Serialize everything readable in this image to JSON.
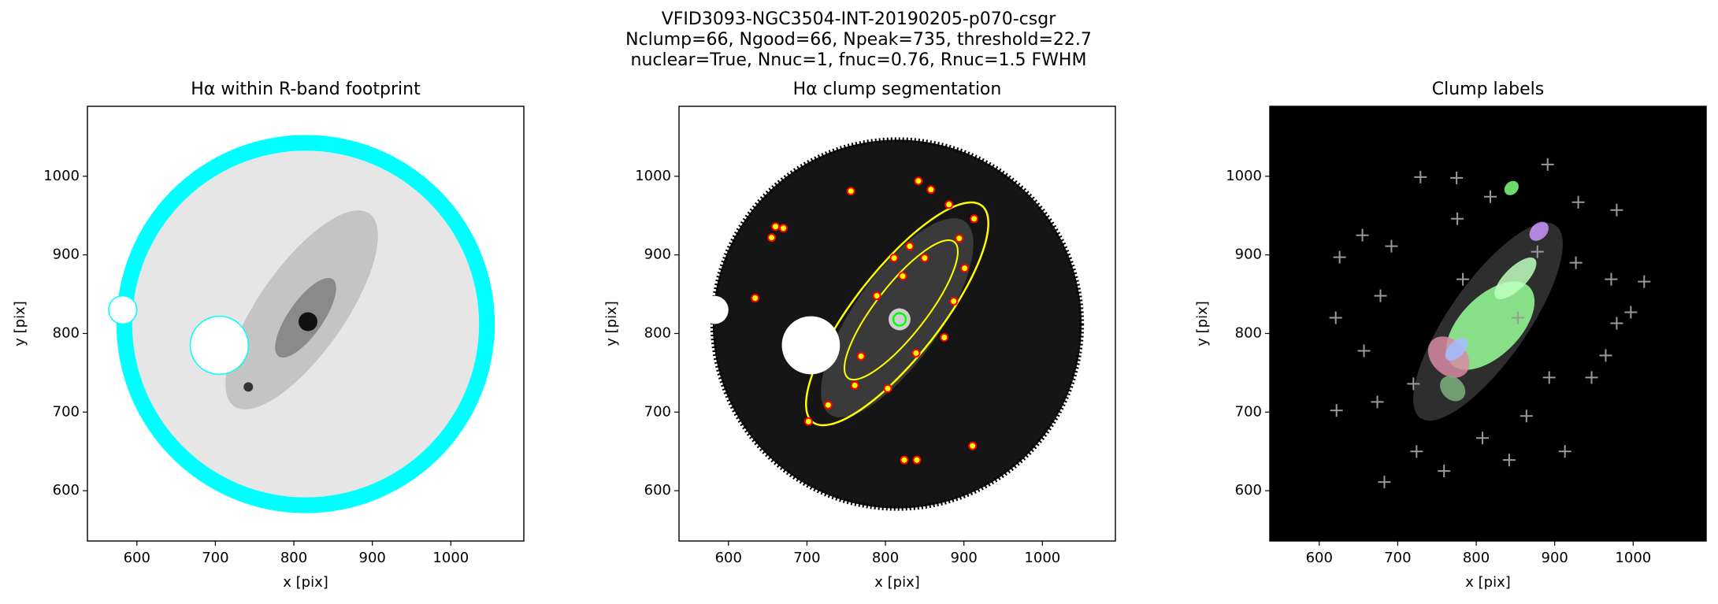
{
  "suptitle": [
    "VFID3093-NGC3504-INT-20190205-p070-csgr",
    "Nclump=66, Ngood=66, Npeak=735, threshold=22.7",
    "nuclear=True, Nnuc=1, fnuc=0.76, Rnuc=1.5 FWHM"
  ],
  "chart_data": [
    {
      "type": "image",
      "title": "Hα within R-band footprint",
      "xlabel": "x [pix]",
      "ylabel": "y [pix]",
      "background": "#ffffff",
      "xlim": [
        537,
        1093
      ],
      "ylim": [
        536,
        1089
      ],
      "xticks": [
        600,
        700,
        800,
        900,
        1000
      ],
      "yticks": [
        600,
        700,
        800,
        900,
        1000
      ]
    },
    {
      "type": "image",
      "title": "Hα clump segmentation",
      "xlabel": "x [pix]",
      "ylabel": "y [pix]",
      "background": "#ffffff",
      "xlim": [
        537,
        1093
      ],
      "ylim": [
        536,
        1089
      ],
      "xticks": [
        600,
        700,
        800,
        900,
        1000
      ],
      "yticks": [
        600,
        700,
        800,
        900,
        1000
      ],
      "clumps": {
        "color": "#ff0000",
        "x": [
          634,
          756,
          842,
          858,
          881,
          913,
          894,
          660,
          670,
          655,
          901,
          811,
          822,
          850,
          831,
          887,
          769,
          839,
          727,
          702,
          803,
          761,
          824,
          840,
          911,
          789,
          875
        ],
        "y": [
          845,
          981,
          994,
          983,
          964,
          946,
          921,
          936,
          934,
          922,
          883,
          896,
          873,
          896,
          911,
          841,
          771,
          775,
          709,
          688,
          730,
          734,
          639,
          639,
          657,
          848,
          795
        ]
      }
    },
    {
      "type": "image",
      "title": "Clump labels",
      "xlabel": "x [pix]",
      "ylabel": "y [pix]",
      "background": "#000000",
      "xlim": [
        537,
        1093
      ],
      "ylim": [
        536,
        1089
      ],
      "xticks": [
        600,
        700,
        800,
        900,
        1000
      ],
      "yticks": [
        600,
        700,
        800,
        900,
        1000
      ],
      "peaks": {
        "color": "#9a9a9a",
        "x": [
          655,
          729,
          775,
          891,
          979,
          1014,
          997,
          621,
          622,
          674,
          724,
          683,
          842,
          913,
          947,
          965,
          972,
          927,
          626,
          692,
          678,
          759,
          808,
          864,
          893,
          776,
          818,
          930,
          657,
          720,
          878,
          853,
          783,
          979
        ],
        "y": [
          925,
          999,
          998,
          1015,
          957,
          866,
          827,
          820,
          702,
          713,
          650,
          611,
          639,
          650,
          744,
          772,
          869,
          890,
          897,
          911,
          848,
          625,
          667,
          695,
          744,
          946,
          974,
          967,
          778,
          736,
          904,
          820,
          869,
          813
        ]
      }
    }
  ]
}
